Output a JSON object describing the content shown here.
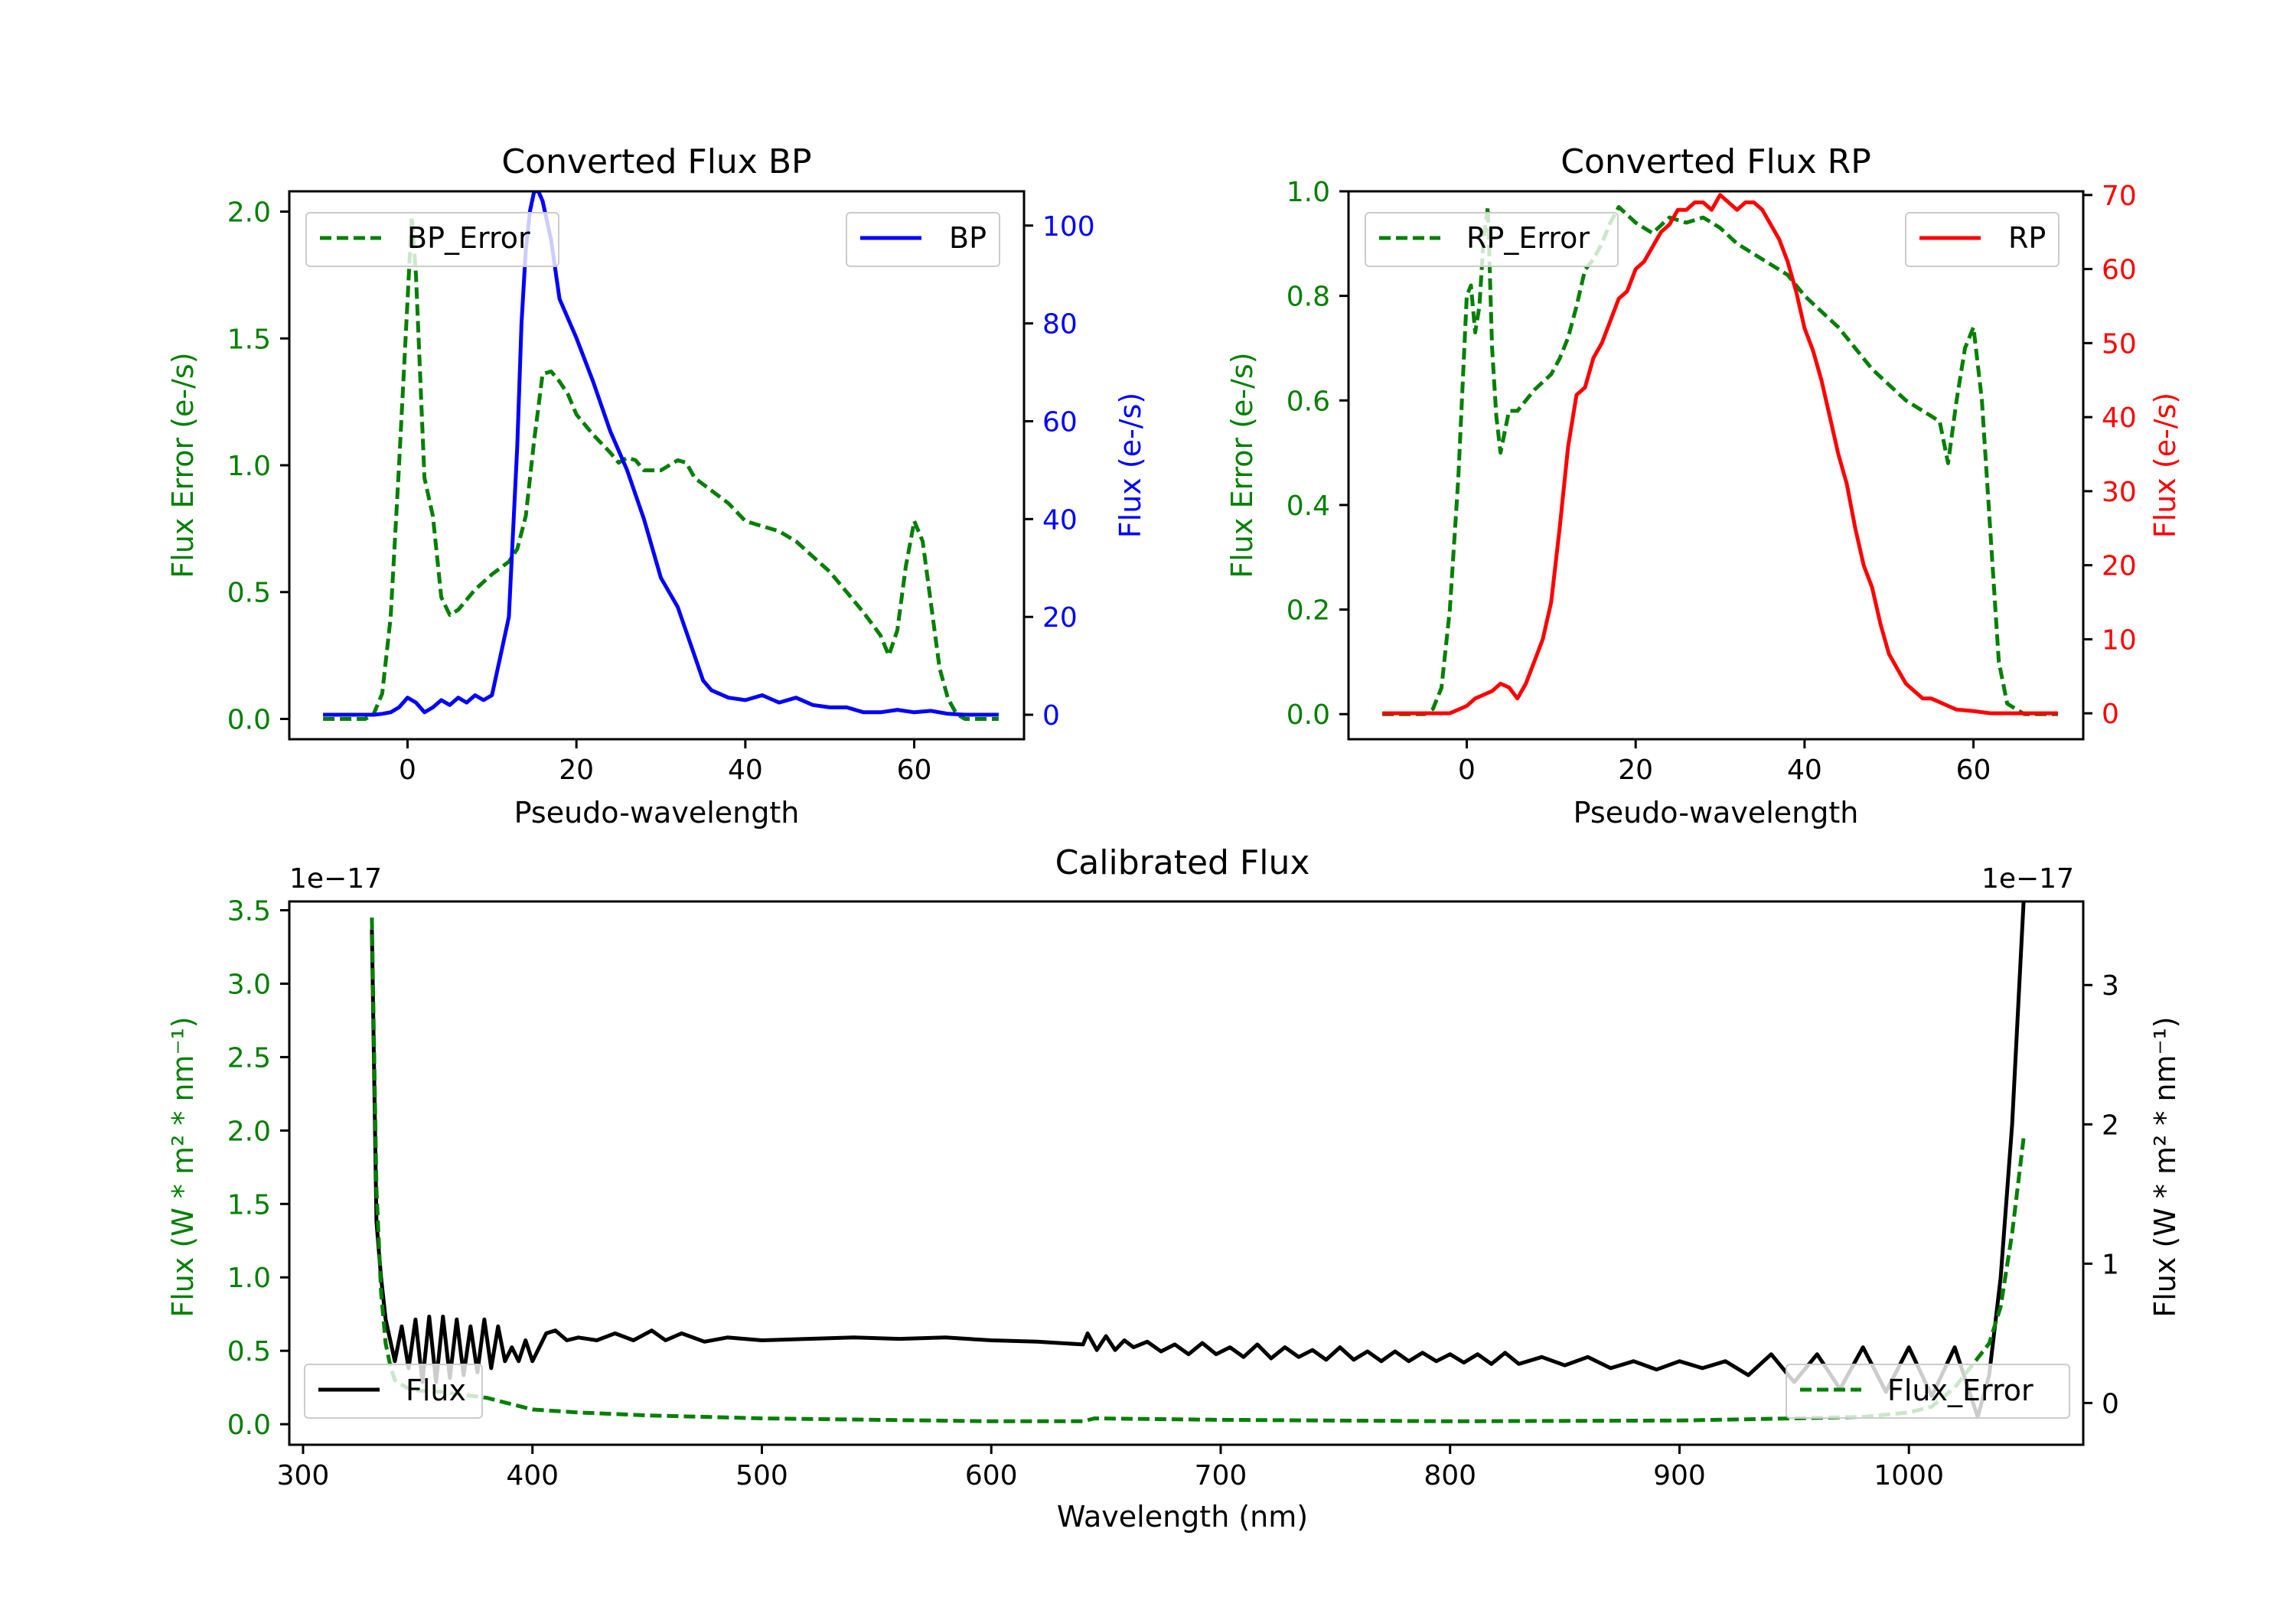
{
  "colors": {
    "error": "#008000",
    "bp": "#0000ff",
    "rp": "#ff0000",
    "flux": "#000000",
    "axis": "#000000"
  },
  "chart_data": [
    {
      "id": "bp",
      "type": "line",
      "title": "Converted Flux BP",
      "xlabel": "Pseudo-wavelength",
      "ylabel_left": "Flux Error (e-/s)",
      "ylabel_right": "Flux (e-/s)",
      "xlim": [
        -14,
        73
      ],
      "ylim_left": [
        -0.08,
        2.08
      ],
      "ylim_right": [
        -5,
        107
      ],
      "xticks": [
        0,
        20,
        40,
        60
      ],
      "yticks_left": [
        0.0,
        0.5,
        1.0,
        1.5,
        2.0
      ],
      "yticks_left_labels": [
        "0.0",
        "0.5",
        "1.0",
        "1.5",
        "2.0"
      ],
      "yticks_right": [
        0,
        20,
        40,
        60,
        80,
        100
      ],
      "yticks_right_labels": [
        "0",
        "20",
        "40",
        "60",
        "80",
        "100"
      ],
      "legend_left": "BP_Error",
      "legend_right": "BP",
      "series": [
        {
          "name": "BP_Error",
          "axis": "left",
          "style": "dashed",
          "color_key": "error",
          "x": [
            -10,
            -5,
            -4,
            -3,
            -2,
            -1,
            0,
            0.5,
            1,
            2,
            3,
            4,
            5,
            6,
            7,
            8,
            10,
            12,
            13,
            14,
            15,
            16,
            17,
            18,
            19,
            20,
            22,
            24,
            25,
            26,
            27,
            28,
            30,
            32,
            33,
            34,
            36,
            38,
            40,
            42,
            44,
            46,
            48,
            50,
            52,
            54,
            56,
            57,
            58,
            59,
            60,
            61,
            62,
            63,
            64,
            65,
            66,
            70
          ],
          "values": [
            0,
            0,
            0.02,
            0.1,
            0.4,
            1.0,
            1.65,
            1.98,
            1.75,
            0.95,
            0.8,
            0.48,
            0.41,
            0.43,
            0.47,
            0.51,
            0.57,
            0.62,
            0.67,
            0.8,
            1.1,
            1.36,
            1.37,
            1.33,
            1.28,
            1.2,
            1.12,
            1.05,
            1.01,
            1.03,
            1.02,
            0.98,
            0.98,
            1.02,
            1.01,
            0.95,
            0.9,
            0.85,
            0.78,
            0.76,
            0.74,
            0.7,
            0.64,
            0.58,
            0.5,
            0.42,
            0.33,
            0.25,
            0.35,
            0.6,
            0.78,
            0.7,
            0.45,
            0.2,
            0.08,
            0.02,
            0,
            0
          ]
        },
        {
          "name": "BP",
          "axis": "right",
          "style": "solid",
          "color_key": "bp",
          "x": [
            -10,
            -4,
            -3,
            -2,
            -1,
            0,
            1,
            2,
            3,
            4,
            5,
            6,
            7,
            8,
            9,
            10,
            11,
            12,
            13,
            13.5,
            14,
            14.5,
            15,
            15.5,
            16,
            17,
            18,
            20,
            22,
            24,
            26,
            28,
            30,
            32,
            34,
            35,
            36,
            38,
            40,
            42,
            44,
            46,
            48,
            50,
            52,
            54,
            56,
            58,
            60,
            62,
            64,
            66,
            70
          ],
          "values": [
            0,
            0,
            0.2,
            0.5,
            1.5,
            3.5,
            2.5,
            0.5,
            1.5,
            3.0,
            2.0,
            3.5,
            2.5,
            4.0,
            3.0,
            4.0,
            12,
            20,
            55,
            80,
            95,
            103,
            107,
            107,
            105,
            97,
            85,
            77,
            68,
            58,
            50,
            40,
            28,
            22,
            12,
            7,
            5,
            3.5,
            3,
            4,
            2.5,
            3.5,
            2,
            1.5,
            1.5,
            0.5,
            0.5,
            1,
            0.5,
            0.8,
            0.2,
            0,
            0
          ]
        }
      ]
    },
    {
      "id": "rp",
      "type": "line",
      "title": "Converted Flux RP",
      "xlabel": "Pseudo-wavelength",
      "ylabel_left": "Flux Error (e-/s)",
      "ylabel_right": "Flux (e-/s)",
      "xlim": [
        -14,
        73
      ],
      "ylim_left": [
        -0.048,
        1.0
      ],
      "ylim_right": [
        -3.5,
        70.5
      ],
      "xticks": [
        0,
        20,
        40,
        60
      ],
      "yticks_left": [
        0.0,
        0.2,
        0.4,
        0.6,
        0.8,
        1.0
      ],
      "yticks_left_labels": [
        "0.0",
        "0.2",
        "0.4",
        "0.6",
        "0.8",
        "1.0"
      ],
      "yticks_right": [
        0,
        10,
        20,
        30,
        40,
        50,
        60,
        70
      ],
      "yticks_right_labels": [
        "0",
        "10",
        "20",
        "30",
        "40",
        "50",
        "60",
        "70"
      ],
      "legend_left": "RP_Error",
      "legend_right": "RP",
      "series": [
        {
          "name": "RP_Error",
          "axis": "left",
          "style": "dashed",
          "color_key": "error",
          "x": [
            -10,
            -5,
            -4,
            -3,
            -2,
            -1,
            0,
            0.5,
            1,
            1.5,
            2,
            2.5,
            3,
            3.5,
            4,
            5,
            6,
            7,
            8,
            10,
            11,
            12,
            13,
            14,
            15,
            16,
            17,
            18,
            20,
            22,
            24,
            26,
            28,
            30,
            32,
            34,
            36,
            38,
            40,
            42,
            44,
            46,
            48,
            50,
            52,
            54,
            55,
            56,
            57,
            58,
            59,
            60,
            61,
            62,
            63,
            64,
            66,
            70
          ],
          "values": [
            0,
            0,
            0.01,
            0.05,
            0.2,
            0.45,
            0.8,
            0.82,
            0.73,
            0.78,
            0.91,
            0.97,
            0.7,
            0.57,
            0.5,
            0.58,
            0.58,
            0.6,
            0.62,
            0.65,
            0.68,
            0.72,
            0.78,
            0.85,
            0.87,
            0.9,
            0.94,
            0.97,
            0.94,
            0.92,
            0.95,
            0.94,
            0.95,
            0.93,
            0.9,
            0.88,
            0.86,
            0.84,
            0.8,
            0.77,
            0.74,
            0.7,
            0.66,
            0.63,
            0.6,
            0.58,
            0.57,
            0.56,
            0.48,
            0.6,
            0.7,
            0.74,
            0.6,
            0.35,
            0.1,
            0.02,
            0,
            0
          ]
        },
        {
          "name": "RP",
          "axis": "right",
          "style": "solid",
          "color_key": "rp",
          "x": [
            -10,
            -2,
            -1,
            0,
            1,
            2,
            3,
            4,
            5,
            6,
            7,
            8,
            9,
            10,
            11,
            12,
            13,
            14,
            15,
            16,
            17,
            18,
            19,
            20,
            21,
            22,
            23,
            24,
            25,
            26,
            27,
            28,
            29,
            30,
            31,
            32,
            33,
            34,
            35,
            36,
            37,
            38,
            39,
            40,
            41,
            42,
            43,
            44,
            45,
            46,
            47,
            48,
            49,
            50,
            51,
            52,
            53,
            54,
            55,
            56,
            57,
            58,
            60,
            62,
            70
          ],
          "values": [
            0,
            0,
            0.5,
            1,
            2,
            2.5,
            3,
            4,
            3.5,
            2,
            4,
            7,
            10,
            15,
            25,
            36,
            43,
            44,
            48,
            50,
            53,
            56,
            57,
            60,
            61,
            63,
            65,
            66,
            68,
            68,
            69,
            69,
            68,
            70,
            69,
            68,
            69,
            69,
            68,
            66,
            64,
            61,
            57,
            52,
            49,
            45,
            40,
            35,
            31,
            25,
            20,
            17,
            12,
            8,
            6,
            4,
            3,
            2,
            2,
            1.5,
            1,
            0.5,
            0.3,
            0,
            0
          ]
        }
      ]
    },
    {
      "id": "cal",
      "type": "line",
      "title": "Calibrated Flux",
      "xlabel": "Wavelength (nm)",
      "ylabel_left": "Flux (W * m² * nm⁻¹)",
      "ylabel_right": "Flux (W * m² * nm⁻¹)",
      "offset_label_left": "1e−17",
      "offset_label_right": "1e−17",
      "xlim": [
        294,
        1076
      ],
      "ylim_left": [
        -0.14,
        3.56
      ],
      "ylim_right": [
        -0.3,
        3.6
      ],
      "xticks": [
        300,
        400,
        500,
        600,
        700,
        800,
        900,
        1000
      ],
      "yticks_left": [
        0.0,
        0.5,
        1.0,
        1.5,
        2.0,
        2.5,
        3.0,
        3.5
      ],
      "yticks_left_labels": [
        "0.0",
        "0.5",
        "1.0",
        "1.5",
        "2.0",
        "2.5",
        "3.0",
        "3.5"
      ],
      "yticks_right": [
        0,
        1,
        2,
        3
      ],
      "yticks_right_labels": [
        "0",
        "1",
        "2",
        "3"
      ],
      "legend_left": "Flux",
      "legend_right": "Flux_Error",
      "series": [
        {
          "name": "Flux",
          "axis": "right",
          "style": "solid",
          "color_key": "flux",
          "x": [
            330,
            332,
            334,
            336,
            338,
            340,
            343,
            346,
            349,
            352,
            355,
            358,
            361,
            364,
            367,
            370,
            373,
            376,
            379,
            382,
            385,
            388,
            391,
            394,
            397,
            400,
            403,
            406,
            410,
            415,
            420,
            428,
            436,
            444,
            452,
            458,
            465,
            475,
            485,
            500,
            520,
            540,
            560,
            580,
            600,
            620,
            640,
            642,
            646,
            650,
            654,
            658,
            662,
            668,
            674,
            680,
            686,
            692,
            698,
            704,
            710,
            716,
            722,
            728,
            734,
            740,
            746,
            752,
            758,
            764,
            770,
            776,
            782,
            788,
            794,
            800,
            806,
            812,
            818,
            824,
            830,
            840,
            850,
            860,
            870,
            880,
            890,
            900,
            910,
            920,
            930,
            940,
            950,
            960,
            970,
            980,
            990,
            1000,
            1010,
            1020,
            1030,
            1035,
            1040,
            1045,
            1050
          ],
          "values": [
            3.4,
            1.3,
            0.9,
            0.6,
            0.45,
            0.3,
            0.55,
            0.25,
            0.6,
            0.15,
            0.62,
            0.15,
            0.62,
            0.18,
            0.6,
            0.2,
            0.55,
            0.22,
            0.6,
            0.25,
            0.55,
            0.3,
            0.4,
            0.3,
            0.45,
            0.3,
            0.4,
            0.5,
            0.52,
            0.45,
            0.47,
            0.45,
            0.5,
            0.45,
            0.52,
            0.45,
            0.5,
            0.44,
            0.47,
            0.45,
            0.46,
            0.47,
            0.46,
            0.47,
            0.45,
            0.44,
            0.42,
            0.5,
            0.38,
            0.48,
            0.38,
            0.45,
            0.4,
            0.44,
            0.37,
            0.42,
            0.35,
            0.43,
            0.35,
            0.4,
            0.33,
            0.42,
            0.32,
            0.4,
            0.33,
            0.38,
            0.31,
            0.4,
            0.31,
            0.37,
            0.3,
            0.37,
            0.3,
            0.36,
            0.3,
            0.35,
            0.29,
            0.35,
            0.28,
            0.36,
            0.28,
            0.33,
            0.27,
            0.33,
            0.25,
            0.3,
            0.24,
            0.3,
            0.25,
            0.3,
            0.2,
            0.35,
            0.15,
            0.35,
            0.1,
            0.4,
            0.08,
            0.4,
            0.05,
            0.4,
            -0.1,
            0.2,
            0.9,
            2.0,
            3.6
          ]
        },
        {
          "name": "Flux_Error",
          "axis": "left",
          "style": "dashed",
          "color_key": "error",
          "x": [
            330,
            332,
            334,
            336,
            338,
            340,
            345,
            350,
            360,
            370,
            380,
            390,
            400,
            420,
            450,
            500,
            550,
            600,
            640,
            645,
            700,
            800,
            900,
            950,
            980,
            1000,
            1010,
            1020,
            1030,
            1035,
            1040,
            1045,
            1050
          ],
          "values": [
            3.45,
            1.6,
            0.9,
            0.55,
            0.4,
            0.3,
            0.25,
            0.23,
            0.22,
            0.2,
            0.18,
            0.14,
            0.1,
            0.08,
            0.06,
            0.04,
            0.03,
            0.02,
            0.02,
            0.04,
            0.03,
            0.02,
            0.025,
            0.04,
            0.05,
            0.08,
            0.12,
            0.25,
            0.45,
            0.55,
            0.8,
            1.3,
            1.95
          ]
        }
      ]
    }
  ]
}
